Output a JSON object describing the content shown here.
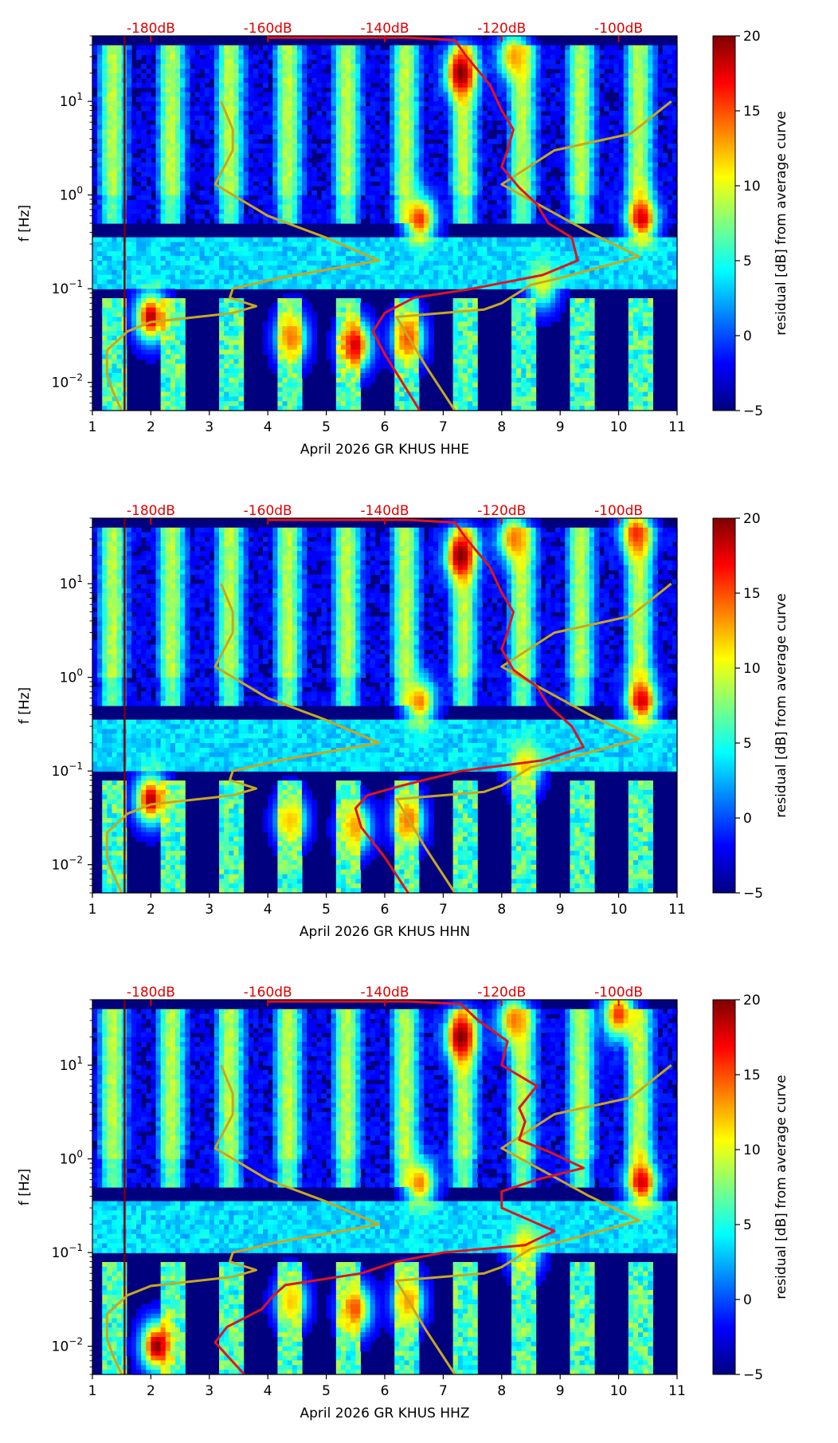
{
  "colors": {
    "nlnm_line": "#e0141c",
    "nhnm_line": "#c8a81e",
    "marker_line": "#7a0000",
    "db_label": "#e00000",
    "colormap": [
      "#00007f",
      "#0000ff",
      "#007fff",
      "#00ffff",
      "#7fff7f",
      "#ffff00",
      "#ff7f00",
      "#ff0000",
      "#7f0000"
    ]
  },
  "chart_data": [
    {
      "type": "heatmap",
      "title": "",
      "xlabel": "April 2026 GR KHUS  HHE",
      "ylabel": "f [Hz]",
      "xlim": [
        1,
        11
      ],
      "ylim": [
        0.005,
        50
      ],
      "y_scale": "log",
      "x_ticks": [
        "1",
        "2",
        "3",
        "4",
        "5",
        "6",
        "7",
        "8",
        "9",
        "10",
        "11"
      ],
      "y_ticks": [
        {
          "value": 0.01,
          "base": "10",
          "exp": "−2"
        },
        {
          "value": 0.1,
          "base": "10",
          "exp": "−1"
        },
        {
          "value": 1,
          "base": "10",
          "exp": "0"
        },
        {
          "value": 10,
          "base": "10",
          "exp": "1"
        }
      ],
      "top_axis_labels": [
        "-180dB",
        "-160dB",
        "-140dB",
        "-120dB",
        "-100dB"
      ],
      "top_axis_positions": [
        2,
        4,
        6,
        8,
        10
      ],
      "colorbar": {
        "label": "residual [dB] from average curve",
        "min": -5,
        "max": 20,
        "ticks": [
          "−5",
          "0",
          "5",
          "10",
          "15",
          "20"
        ],
        "tick_values": [
          -5,
          0,
          5,
          10,
          15,
          20
        ]
      },
      "marker_line_day": 1.55,
      "series": [
        {
          "name": "noise-model-curve",
          "points": [
            [
              1.5,
              0.005
            ],
            [
              1.35,
              0.008
            ],
            [
              1.25,
              0.012
            ],
            [
              1.25,
              0.022
            ],
            [
              1.6,
              0.035
            ],
            [
              2.0,
              0.044
            ],
            [
              2.8,
              0.05
            ],
            [
              3.4,
              0.055
            ],
            [
              3.8,
              0.065
            ],
            [
              3.35,
              0.08
            ],
            [
              3.4,
              0.1
            ],
            [
              4.2,
              0.13
            ],
            [
              5.9,
              0.2
            ],
            [
              5.0,
              0.35
            ],
            [
              4.0,
              0.6
            ],
            [
              3.1,
              1.3
            ],
            [
              3.4,
              3.0
            ],
            [
              3.4,
              5.0
            ],
            [
              3.2,
              10
            ]
          ]
        },
        {
          "name": "noise-model-curve-upper",
          "points": [
            [
              7.2,
              0.005
            ],
            [
              6.7,
              0.015
            ],
            [
              6.2,
              0.05
            ],
            [
              7.7,
              0.06
            ],
            [
              8.0,
              0.07
            ],
            [
              8.5,
              0.11
            ],
            [
              9.0,
              0.13
            ],
            [
              10.35,
              0.22
            ],
            [
              9.5,
              0.4
            ],
            [
              8.0,
              1.3
            ],
            [
              8.9,
              3.0
            ],
            [
              10.2,
              4.5
            ],
            [
              10.9,
              10
            ]
          ]
        },
        {
          "name": "median-psd",
          "points": [
            [
              6.6,
              0.005
            ],
            [
              6.3,
              0.01
            ],
            [
              6.0,
              0.02
            ],
            [
              5.8,
              0.035
            ],
            [
              6.0,
              0.055
            ],
            [
              6.5,
              0.08
            ],
            [
              7.5,
              0.1
            ],
            [
              8.7,
              0.14
            ],
            [
              9.3,
              0.2
            ],
            [
              9.2,
              0.35
            ],
            [
              8.8,
              0.5
            ],
            [
              8.6,
              0.8
            ],
            [
              8.3,
              1.2
            ],
            [
              8.0,
              2.0
            ],
            [
              8.1,
              3.0
            ],
            [
              8.2,
              5.0
            ],
            [
              8.0,
              8.0
            ],
            [
              7.8,
              15
            ],
            [
              7.4,
              30
            ],
            [
              7.2,
              45
            ],
            [
              6.4,
              48
            ],
            [
              4.0,
              48
            ]
          ]
        }
      ],
      "hot_spots": [
        [
          4.4,
          0.03,
          14
        ],
        [
          5.5,
          0.025,
          18
        ],
        [
          6.4,
          0.03,
          15
        ],
        [
          7.3,
          20,
          20
        ],
        [
          6.6,
          0.55,
          16
        ],
        [
          10.4,
          0.55,
          18
        ],
        [
          8.2,
          30,
          13
        ],
        [
          8.7,
          0.11,
          10
        ],
        [
          2.0,
          0.05,
          19
        ]
      ]
    },
    {
      "type": "heatmap",
      "title": "",
      "xlabel": "April 2026 GR KHUS  HHN",
      "ylabel": "f [Hz]",
      "xlim": [
        1,
        11
      ],
      "ylim": [
        0.005,
        50
      ],
      "y_scale": "log",
      "x_ticks": [
        "1",
        "2",
        "3",
        "4",
        "5",
        "6",
        "7",
        "8",
        "9",
        "10",
        "11"
      ],
      "y_ticks": [
        {
          "value": 0.01,
          "base": "10",
          "exp": "−2"
        },
        {
          "value": 0.1,
          "base": "10",
          "exp": "−1"
        },
        {
          "value": 1,
          "base": "10",
          "exp": "0"
        },
        {
          "value": 10,
          "base": "10",
          "exp": "1"
        }
      ],
      "top_axis_labels": [
        "-180dB",
        "-160dB",
        "-140dB",
        "-120dB",
        "-100dB"
      ],
      "top_axis_positions": [
        2,
        4,
        6,
        8,
        10
      ],
      "colorbar": {
        "label": "residual [dB] from average curve",
        "min": -5,
        "max": 20,
        "ticks": [
          "−5",
          "0",
          "5",
          "10",
          "15",
          "20"
        ],
        "tick_values": [
          -5,
          0,
          5,
          10,
          15,
          20
        ]
      },
      "marker_line_day": 1.55,
      "series": [
        {
          "name": "noise-model-curve",
          "points": [
            [
              1.5,
              0.005
            ],
            [
              1.35,
              0.008
            ],
            [
              1.25,
              0.012
            ],
            [
              1.25,
              0.022
            ],
            [
              1.6,
              0.035
            ],
            [
              2.0,
              0.044
            ],
            [
              2.8,
              0.05
            ],
            [
              3.4,
              0.055
            ],
            [
              3.8,
              0.065
            ],
            [
              3.35,
              0.08
            ],
            [
              3.4,
              0.1
            ],
            [
              4.2,
              0.13
            ],
            [
              5.9,
              0.2
            ],
            [
              5.0,
              0.35
            ],
            [
              4.0,
              0.6
            ],
            [
              3.1,
              1.3
            ],
            [
              3.4,
              3.0
            ],
            [
              3.4,
              5.0
            ],
            [
              3.2,
              10
            ]
          ]
        },
        {
          "name": "noise-model-curve-upper",
          "points": [
            [
              7.2,
              0.005
            ],
            [
              6.7,
              0.015
            ],
            [
              6.2,
              0.05
            ],
            [
              7.7,
              0.06
            ],
            [
              8.0,
              0.07
            ],
            [
              8.5,
              0.11
            ],
            [
              9.0,
              0.13
            ],
            [
              10.35,
              0.22
            ],
            [
              9.5,
              0.4
            ],
            [
              8.0,
              1.3
            ],
            [
              8.9,
              3.0
            ],
            [
              10.2,
              4.5
            ],
            [
              10.9,
              10
            ]
          ]
        },
        {
          "name": "median-psd",
          "points": [
            [
              6.4,
              0.005
            ],
            [
              6.0,
              0.012
            ],
            [
              5.6,
              0.025
            ],
            [
              5.5,
              0.04
            ],
            [
              5.7,
              0.055
            ],
            [
              6.3,
              0.07
            ],
            [
              7.3,
              0.1
            ],
            [
              8.7,
              0.13
            ],
            [
              9.4,
              0.18
            ],
            [
              9.2,
              0.3
            ],
            [
              8.8,
              0.5
            ],
            [
              8.6,
              0.8
            ],
            [
              8.2,
              1.2
            ],
            [
              8.0,
              2.0
            ],
            [
              8.1,
              3.0
            ],
            [
              8.2,
              5.0
            ],
            [
              8.0,
              8.0
            ],
            [
              7.8,
              15
            ],
            [
              7.4,
              30
            ],
            [
              7.2,
              45
            ],
            [
              6.4,
              48
            ],
            [
              4.0,
              48
            ]
          ]
        }
      ],
      "hot_spots": [
        [
          4.4,
          0.03,
          12
        ],
        [
          5.5,
          0.025,
          13
        ],
        [
          6.4,
          0.03,
          14
        ],
        [
          7.3,
          20,
          20
        ],
        [
          6.6,
          0.55,
          14
        ],
        [
          10.4,
          0.55,
          18
        ],
        [
          8.2,
          30,
          14
        ],
        [
          8.4,
          0.11,
          12
        ],
        [
          2.0,
          0.05,
          19
        ],
        [
          10.3,
          35,
          16
        ]
      ]
    },
    {
      "type": "heatmap",
      "title": "",
      "xlabel": "April 2026 GR KHUS  HHZ",
      "ylabel": "f [Hz]",
      "xlim": [
        1,
        11
      ],
      "ylim": [
        0.005,
        50
      ],
      "y_scale": "log",
      "x_ticks": [
        "1",
        "2",
        "3",
        "4",
        "5",
        "6",
        "7",
        "8",
        "9",
        "10",
        "11"
      ],
      "y_ticks": [
        {
          "value": 0.01,
          "base": "10",
          "exp": "−2"
        },
        {
          "value": 0.1,
          "base": "10",
          "exp": "−1"
        },
        {
          "value": 1,
          "base": "10",
          "exp": "0"
        },
        {
          "value": 10,
          "base": "10",
          "exp": "1"
        }
      ],
      "top_axis_labels": [
        "-180dB",
        "-160dB",
        "-140dB",
        "-120dB",
        "-100dB"
      ],
      "top_axis_positions": [
        2,
        4,
        6,
        8,
        10
      ],
      "colorbar": {
        "label": "residual [dB] from average curve",
        "min": -5,
        "max": 20,
        "ticks": [
          "−5",
          "0",
          "5",
          "10",
          "15",
          "20"
        ],
        "tick_values": [
          -5,
          0,
          5,
          10,
          15,
          20
        ]
      },
      "marker_line_day": 1.55,
      "series": [
        {
          "name": "noise-model-curve",
          "points": [
            [
              1.5,
              0.005
            ],
            [
              1.35,
              0.008
            ],
            [
              1.25,
              0.012
            ],
            [
              1.25,
              0.022
            ],
            [
              1.6,
              0.035
            ],
            [
              2.0,
              0.044
            ],
            [
              2.8,
              0.05
            ],
            [
              3.4,
              0.055
            ],
            [
              3.8,
              0.065
            ],
            [
              3.35,
              0.08
            ],
            [
              3.4,
              0.1
            ],
            [
              4.2,
              0.13
            ],
            [
              5.9,
              0.2
            ],
            [
              5.0,
              0.35
            ],
            [
              4.0,
              0.6
            ],
            [
              3.1,
              1.3
            ],
            [
              3.4,
              3.0
            ],
            [
              3.4,
              5.0
            ],
            [
              3.2,
              10
            ]
          ]
        },
        {
          "name": "noise-model-curve-upper",
          "points": [
            [
              7.2,
              0.005
            ],
            [
              6.7,
              0.015
            ],
            [
              6.2,
              0.05
            ],
            [
              7.7,
              0.06
            ],
            [
              8.0,
              0.07
            ],
            [
              8.5,
              0.11
            ],
            [
              9.0,
              0.13
            ],
            [
              10.35,
              0.22
            ],
            [
              9.5,
              0.4
            ],
            [
              8.0,
              1.3
            ],
            [
              8.9,
              3.0
            ],
            [
              10.2,
              4.5
            ],
            [
              10.9,
              10
            ]
          ]
        },
        {
          "name": "median-psd",
          "points": [
            [
              3.6,
              0.005
            ],
            [
              3.3,
              0.008
            ],
            [
              3.1,
              0.011
            ],
            [
              3.3,
              0.016
            ],
            [
              3.9,
              0.025
            ],
            [
              4.1,
              0.035
            ],
            [
              4.3,
              0.045
            ],
            [
              5.6,
              0.06
            ],
            [
              6.2,
              0.08
            ],
            [
              7.0,
              0.1
            ],
            [
              8.4,
              0.12
            ],
            [
              8.9,
              0.17
            ],
            [
              8.0,
              0.3
            ],
            [
              8.0,
              0.45
            ],
            [
              8.6,
              0.6
            ],
            [
              9.4,
              0.8
            ],
            [
              8.8,
              1.2
            ],
            [
              8.3,
              1.6
            ],
            [
              8.4,
              2.5
            ],
            [
              8.3,
              3.5
            ],
            [
              8.6,
              6.0
            ],
            [
              8.0,
              10
            ],
            [
              8.1,
              18
            ],
            [
              7.6,
              30
            ],
            [
              7.3,
              45
            ],
            [
              6.4,
              48
            ],
            [
              4.0,
              48
            ]
          ]
        }
      ],
      "hot_spots": [
        [
          2.1,
          0.01,
          20
        ],
        [
          4.4,
          0.03,
          12
        ],
        [
          5.5,
          0.025,
          15
        ],
        [
          6.4,
          0.03,
          13
        ],
        [
          7.3,
          20,
          20
        ],
        [
          6.6,
          0.55,
          14
        ],
        [
          10.4,
          0.55,
          18
        ],
        [
          8.2,
          30,
          14
        ],
        [
          8.4,
          0.11,
          12
        ],
        [
          10.0,
          35,
          16
        ]
      ]
    }
  ]
}
